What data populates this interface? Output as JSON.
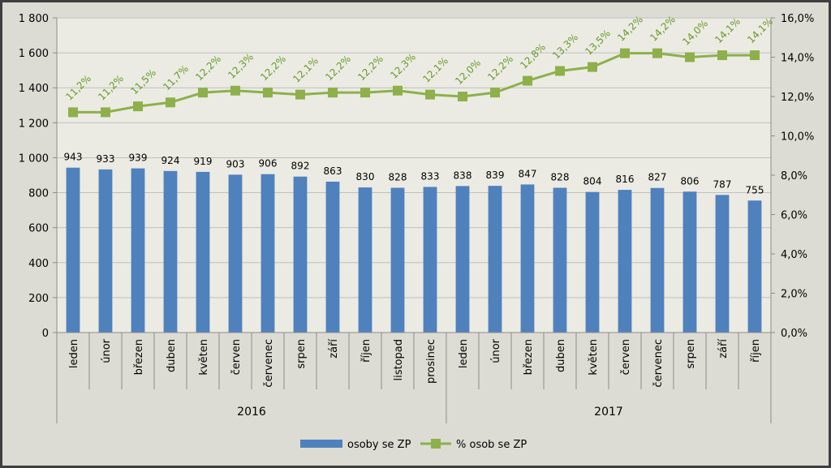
{
  "chart_data": {
    "type": "bar",
    "categories": [
      "leden",
      "únor",
      "březen",
      "duben",
      "květen",
      "červen",
      "červenec",
      "srpen",
      "září",
      "říjen",
      "listopad",
      "prosinec",
      "leden",
      "únor",
      "březen",
      "duben",
      "květen",
      "červen",
      "červenec",
      "srpen",
      "září",
      "říjen"
    ],
    "groups": [
      {
        "label": "2016",
        "count": 12
      },
      {
        "label": "2017",
        "count": 10
      }
    ],
    "series": [
      {
        "name": "osoby se ZP",
        "type": "bar",
        "axis": "left",
        "color": "#4f81bd",
        "values": [
          943,
          933,
          939,
          924,
          919,
          903,
          906,
          892,
          863,
          830,
          828,
          833,
          838,
          839,
          847,
          828,
          804,
          816,
          827,
          806,
          787,
          755
        ],
        "labels": [
          "943",
          "933",
          "939",
          "924",
          "919",
          "903",
          "906",
          "892",
          "863",
          "830",
          "828",
          "833",
          "838",
          "839",
          "847",
          "828",
          "804",
          "816",
          "827",
          "806",
          "787",
          "755"
        ]
      },
      {
        "name": "% osob se ZP",
        "type": "line",
        "axis": "right",
        "color": "#8db04b",
        "marker": "square",
        "values": [
          11.2,
          11.2,
          11.5,
          11.7,
          12.2,
          12.3,
          12.2,
          12.1,
          12.2,
          12.2,
          12.3,
          12.1,
          12.0,
          12.2,
          12.8,
          13.3,
          13.5,
          14.2,
          14.2,
          14.0,
          14.1,
          14.1
        ],
        "labels": [
          "11,2%",
          "11,2%",
          "11,5%",
          "11,7%",
          "12,2%",
          "12,3%",
          "12,2%",
          "12,1%",
          "12,2%",
          "12,2%",
          "12,3%",
          "12,1%",
          "12,0%",
          "12,2%",
          "12,8%",
          "13,3%",
          "13,5%",
          "14,2%",
          "14,2%",
          "14,0%",
          "14,1%",
          "14,1%"
        ]
      }
    ],
    "y_left": {
      "min": 0,
      "max": 1800,
      "ticks": [
        0,
        200,
        400,
        600,
        800,
        1000,
        1200,
        1400,
        1600,
        1800
      ],
      "tick_labels": [
        "0",
        "200",
        "400",
        "600",
        "800",
        "1 000",
        "1 200",
        "1 400",
        "1 600",
        "1 800"
      ]
    },
    "y_right": {
      "min": 0,
      "max": 16,
      "ticks": [
        0,
        2,
        4,
        6,
        8,
        10,
        12,
        14,
        16
      ],
      "tick_labels": [
        "0,0%",
        "2,0%",
        "4,0%",
        "6,0%",
        "8,0%",
        "10,0%",
        "12,0%",
        "14,0%",
        "16,0%"
      ]
    },
    "grid": true,
    "legend": "bottom",
    "title": "",
    "xlabel": "",
    "ylabel": "",
    "colors": {
      "plot_bg": "#ebebe3",
      "frame_bg": "#dcdcd4",
      "grid": "#bfbfbf",
      "axis": "#8c8c8c"
    }
  }
}
